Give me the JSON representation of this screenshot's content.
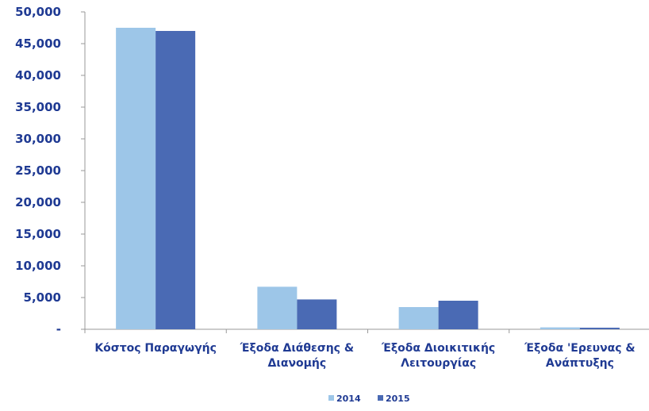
{
  "chart_data": {
    "type": "bar",
    "categories": [
      [
        "Κόστος Παραγωγής"
      ],
      [
        "Έξοδα Διάθεσης &",
        "Διανομής"
      ],
      [
        "Έξοδα Διοικιτικής",
        "Λειτουργίας"
      ],
      [
        "Έξοδα 'Ερευνας &",
        "Ανάπτυξης"
      ]
    ],
    "series": [
      {
        "name": "2014",
        "values": [
          47500,
          6700,
          3500,
          300
        ],
        "color": "#9dc6e8"
      },
      {
        "name": "2015",
        "values": [
          47000,
          4700,
          4500,
          250
        ],
        "color": "#4a6ab4"
      }
    ],
    "y_ticks": [
      {
        "value": 0,
        "label": "-"
      },
      {
        "value": 5000,
        "label": "5,000"
      },
      {
        "value": 10000,
        "label": "10,000"
      },
      {
        "value": 15000,
        "label": "15,000"
      },
      {
        "value": 20000,
        "label": "20,000"
      },
      {
        "value": 25000,
        "label": "25,000"
      },
      {
        "value": 30000,
        "label": "30,000"
      },
      {
        "value": 35000,
        "label": "35,000"
      },
      {
        "value": 40000,
        "label": "40,000"
      },
      {
        "value": 45000,
        "label": "45,000"
      },
      {
        "value": 50000,
        "label": "50,000"
      }
    ],
    "ylim": [
      0,
      50000
    ],
    "grid": false,
    "legend_position": "bottom-center",
    "title": "",
    "xlabel": "",
    "ylabel": "",
    "axis_color": "#999999",
    "label_color": "#1f3a93"
  }
}
